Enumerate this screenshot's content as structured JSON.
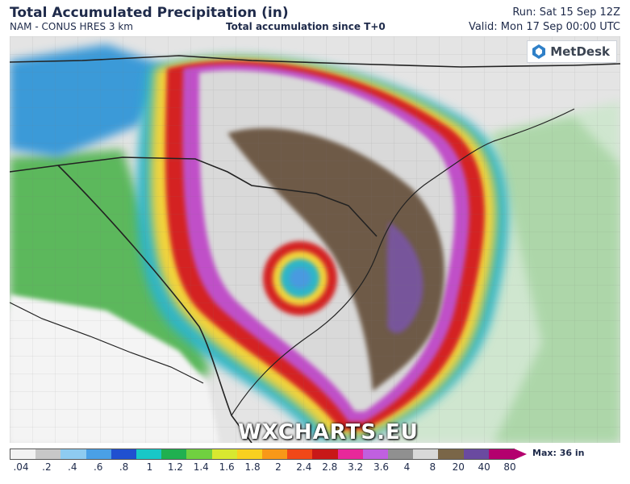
{
  "header": {
    "title": "Total Accumulated Precipitation (in)",
    "model": "NAM - CONUS HRES 3 km",
    "description": "Total accumulation since T+0",
    "run": "Run: Sat 15 Sep 12Z",
    "valid": "Valid: Mon 17 Sep 00:00 UTC"
  },
  "brand": {
    "logo_text": "MetDesk",
    "watermark": "WXCHARTS.EU"
  },
  "legend": {
    "max_label": "Max: 36 in",
    "ticks": [
      ".04",
      ".2",
      ".4",
      ".6",
      ".8",
      "1",
      "1.2",
      "1.4",
      "1.6",
      "1.8",
      "2",
      "2.4",
      "2.8",
      "3.2",
      "3.6",
      "4",
      "8",
      "20",
      "40",
      "80"
    ],
    "colors": [
      "#f2f2f2",
      "#c8c8c8",
      "#8ecbf0",
      "#4aa0e6",
      "#2050d0",
      "#18c8c8",
      "#20b050",
      "#70d040",
      "#d8e830",
      "#f8d020",
      "#f89818",
      "#f04818",
      "#c81818",
      "#e8289a",
      "#c060e0",
      "#909090",
      "#d8d8d8",
      "#7a6648",
      "#6a4aa0",
      "#b4006e"
    ]
  },
  "colors": {
    "heavy_core": "#6e5a46",
    "purple_band": "#c050c8",
    "red_band": "#d42020",
    "land_background": "#e6e6e6",
    "state_border": "#222222"
  }
}
